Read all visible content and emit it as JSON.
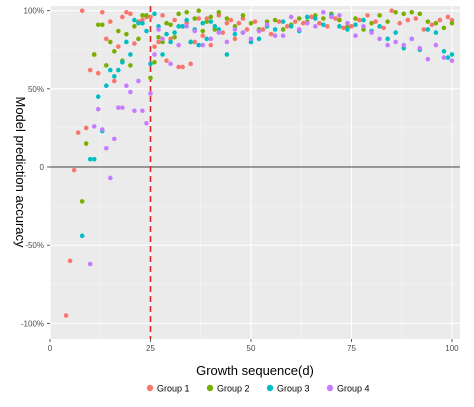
{
  "chart_data": {
    "type": "scatter",
    "xlabel": "Growth sequence(d)",
    "ylabel": "Model prediction accuracy",
    "xlim": [
      0,
      102
    ],
    "ylim": [
      -110,
      103
    ],
    "x_ticks": [
      0,
      25,
      50,
      75,
      100
    ],
    "x_tick_labels": [
      "0",
      "25",
      "50",
      "75",
      "100"
    ],
    "y_ticks": [
      100,
      50,
      0,
      -50,
      -100
    ],
    "y_tick_labels": [
      "100%",
      "50%",
      "0",
      "-50%",
      "-100%"
    ],
    "grid": true,
    "legend_position": "bottom",
    "reference_lines": [
      {
        "orientation": "horizontal",
        "value": 0,
        "color": "#000000",
        "style": "solid"
      },
      {
        "orientation": "vertical",
        "value": 25,
        "color": "#d62728",
        "style": "dashed"
      }
    ],
    "series": [
      {
        "name": "Group 1",
        "color": "#F8766D",
        "points": [
          [
            4,
            -95
          ],
          [
            5,
            -60
          ],
          [
            6,
            -2
          ],
          [
            7,
            22
          ],
          [
            8,
            100
          ],
          [
            9,
            25
          ],
          [
            10,
            62
          ],
          [
            11,
            72
          ],
          [
            12,
            60
          ],
          [
            13,
            99
          ],
          [
            14,
            82
          ],
          [
            15,
            93
          ],
          [
            16,
            55
          ],
          [
            17,
            77
          ],
          [
            18,
            96
          ],
          [
            19,
            99
          ],
          [
            20,
            98
          ],
          [
            21,
            79
          ],
          [
            22,
            93
          ],
          [
            23,
            94
          ],
          [
            24,
            96
          ],
          [
            25,
            96
          ],
          [
            26,
            77
          ],
          [
            27,
            80
          ],
          [
            28,
            97
          ],
          [
            29,
            68
          ],
          [
            30,
            82
          ],
          [
            31,
            94
          ],
          [
            32,
            64
          ],
          [
            33,
            64
          ],
          [
            34,
            92
          ],
          [
            35,
            66
          ],
          [
            36,
            80
          ],
          [
            37,
            95
          ],
          [
            38,
            84
          ],
          [
            39,
            95
          ],
          [
            40,
            78
          ],
          [
            41,
            90
          ],
          [
            42,
            97
          ],
          [
            43,
            86
          ],
          [
            44,
            92
          ],
          [
            45,
            94
          ],
          [
            46,
            82
          ],
          [
            47,
            92
          ],
          [
            48,
            95
          ],
          [
            49,
            88
          ],
          [
            50,
            80
          ],
          [
            51,
            93
          ],
          [
            52,
            87
          ],
          [
            53,
            88
          ],
          [
            55,
            85
          ],
          [
            57,
            93
          ],
          [
            59,
            90
          ],
          [
            61,
            93
          ],
          [
            63,
            92
          ],
          [
            65,
            96
          ],
          [
            67,
            92
          ],
          [
            69,
            90
          ],
          [
            71,
            95
          ],
          [
            73,
            89
          ],
          [
            75,
            90
          ],
          [
            77,
            94
          ],
          [
            79,
            97
          ],
          [
            81,
            93
          ],
          [
            83,
            89
          ],
          [
            85,
            100
          ],
          [
            87,
            92
          ],
          [
            89,
            94
          ],
          [
            91,
            95
          ],
          [
            93,
            88
          ],
          [
            95,
            91
          ],
          [
            97,
            94
          ],
          [
            99,
            96
          ],
          [
            100,
            94
          ]
        ]
      },
      {
        "name": "Group 2",
        "color": "#7CAE00",
        "points": [
          [
            8,
            -22
          ],
          [
            9,
            15
          ],
          [
            11,
            72
          ],
          [
            12,
            91
          ],
          [
            13,
            91
          ],
          [
            14,
            65
          ],
          [
            15,
            80
          ],
          [
            16,
            74
          ],
          [
            17,
            87
          ],
          [
            18,
            68
          ],
          [
            19,
            85
          ],
          [
            20,
            65
          ],
          [
            21,
            90
          ],
          [
            22,
            82
          ],
          [
            23,
            97
          ],
          [
            24,
            97
          ],
          [
            25,
            57
          ],
          [
            26,
            67
          ],
          [
            27,
            83
          ],
          [
            28,
            80
          ],
          [
            29,
            92
          ],
          [
            30,
            91
          ],
          [
            31,
            83
          ],
          [
            32,
            98
          ],
          [
            33,
            90
          ],
          [
            34,
            99
          ],
          [
            35,
            80
          ],
          [
            36,
            95
          ],
          [
            37,
            100
          ],
          [
            38,
            87
          ],
          [
            39,
            93
          ],
          [
            40,
            96
          ],
          [
            41,
            88
          ],
          [
            42,
            99
          ],
          [
            44,
            95
          ],
          [
            46,
            90
          ],
          [
            48,
            97
          ],
          [
            50,
            92
          ],
          [
            52,
            88
          ],
          [
            54,
            93
          ],
          [
            56,
            94
          ],
          [
            58,
            88
          ],
          [
            60,
            91
          ],
          [
            62,
            95
          ],
          [
            64,
            93
          ],
          [
            66,
            97
          ],
          [
            68,
            95
          ],
          [
            70,
            98
          ],
          [
            72,
            94
          ],
          [
            74,
            90
          ],
          [
            76,
            95
          ],
          [
            78,
            88
          ],
          [
            80,
            92
          ],
          [
            82,
            97
          ],
          [
            84,
            93
          ],
          [
            86,
            99
          ],
          [
            88,
            98
          ],
          [
            90,
            99
          ],
          [
            92,
            98
          ],
          [
            94,
            93
          ],
          [
            96,
            92
          ],
          [
            98,
            89
          ],
          [
            100,
            92
          ]
        ]
      },
      {
        "name": "Group 3",
        "color": "#00BFC4",
        "points": [
          [
            8,
            -44
          ],
          [
            10,
            5
          ],
          [
            11,
            5
          ],
          [
            12,
            45
          ],
          [
            13,
            23
          ],
          [
            14,
            52
          ],
          [
            15,
            62
          ],
          [
            16,
            58
          ],
          [
            17,
            62
          ],
          [
            18,
            67
          ],
          [
            19,
            80
          ],
          [
            20,
            72
          ],
          [
            21,
            94
          ],
          [
            22,
            92
          ],
          [
            23,
            92
          ],
          [
            24,
            87
          ],
          [
            25,
            66
          ],
          [
            26,
            98
          ],
          [
            27,
            90
          ],
          [
            28,
            72
          ],
          [
            29,
            85
          ],
          [
            30,
            80
          ],
          [
            31,
            86
          ],
          [
            32,
            90
          ],
          [
            33,
            90
          ],
          [
            34,
            94
          ],
          [
            35,
            80
          ],
          [
            36,
            88
          ],
          [
            37,
            78
          ],
          [
            38,
            92
          ],
          [
            39,
            82
          ],
          [
            40,
            93
          ],
          [
            41,
            90
          ],
          [
            42,
            88
          ],
          [
            44,
            72
          ],
          [
            46,
            85
          ],
          [
            48,
            86
          ],
          [
            50,
            80
          ],
          [
            52,
            82
          ],
          [
            54,
            90
          ],
          [
            56,
            88
          ],
          [
            58,
            93
          ],
          [
            60,
            90
          ],
          [
            62,
            87
          ],
          [
            64,
            96
          ],
          [
            66,
            95
          ],
          [
            68,
            91
          ],
          [
            70,
            97
          ],
          [
            72,
            90
          ],
          [
            74,
            88
          ],
          [
            76,
            91
          ],
          [
            78,
            94
          ],
          [
            80,
            87
          ],
          [
            82,
            90
          ],
          [
            84,
            82
          ],
          [
            86,
            86
          ],
          [
            88,
            76
          ],
          [
            90,
            82
          ],
          [
            92,
            75
          ],
          [
            94,
            88
          ],
          [
            96,
            86
          ],
          [
            98,
            74
          ],
          [
            99,
            70
          ],
          [
            100,
            72
          ]
        ]
      },
      {
        "name": "Group 4",
        "color": "#C77CFF",
        "points": [
          [
            10,
            -62
          ],
          [
            11,
            26
          ],
          [
            12,
            37
          ],
          [
            13,
            24
          ],
          [
            14,
            12
          ],
          [
            15,
            -7
          ],
          [
            16,
            18
          ],
          [
            17,
            38
          ],
          [
            18,
            38
          ],
          [
            19,
            52
          ],
          [
            20,
            48
          ],
          [
            21,
            36
          ],
          [
            22,
            55
          ],
          [
            23,
            36
          ],
          [
            24,
            28
          ],
          [
            25,
            47
          ],
          [
            26,
            72
          ],
          [
            27,
            88
          ],
          [
            28,
            82
          ],
          [
            30,
            66
          ],
          [
            32,
            78
          ],
          [
            34,
            90
          ],
          [
            36,
            87
          ],
          [
            38,
            78
          ],
          [
            40,
            82
          ],
          [
            42,
            86
          ],
          [
            44,
            80
          ],
          [
            46,
            88
          ],
          [
            48,
            86
          ],
          [
            50,
            82
          ],
          [
            52,
            87
          ],
          [
            54,
            91
          ],
          [
            56,
            84
          ],
          [
            58,
            84
          ],
          [
            60,
            96
          ],
          [
            62,
            88
          ],
          [
            64,
            92
          ],
          [
            66,
            90
          ],
          [
            68,
            99
          ],
          [
            70,
            96
          ],
          [
            72,
            97
          ],
          [
            74,
            92
          ],
          [
            76,
            84
          ],
          [
            78,
            90
          ],
          [
            80,
            86
          ],
          [
            82,
            82
          ],
          [
            84,
            78
          ],
          [
            86,
            80
          ],
          [
            88,
            78
          ],
          [
            90,
            82
          ],
          [
            92,
            76
          ],
          [
            94,
            69
          ],
          [
            96,
            78
          ],
          [
            98,
            70
          ],
          [
            100,
            68
          ]
        ]
      }
    ]
  }
}
